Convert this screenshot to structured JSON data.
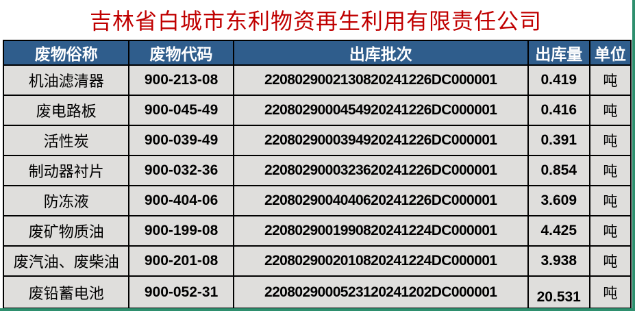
{
  "title": "吉林省白城市东利物资再生利用有限责任公司",
  "colors": {
    "title_text": "#c00000",
    "header_bg": "#2f5d8c",
    "header_text": "#ffffff",
    "row_bg": "#dfdedc",
    "grid_line": "#000000",
    "sheet_edge_green": "#2e8f6e"
  },
  "table": {
    "headers": [
      "废物俗称",
      "废物代码",
      "出库批次",
      "出库量",
      "单位"
    ],
    "rows": [
      {
        "name": "机油滤清器",
        "code": "900-213-08",
        "batch": "2208029002130820241226DC000001",
        "qty": "0.419",
        "unit": "吨"
      },
      {
        "name": "废电路板",
        "code": "900-045-49",
        "batch": "2208029000454920241226DC000001",
        "qty": "0.416",
        "unit": "吨"
      },
      {
        "name": "活性炭",
        "code": "900-039-49",
        "batch": "2208029000394920241226DC000001",
        "qty": "0.391",
        "unit": "吨"
      },
      {
        "name": "制动器衬片",
        "code": "900-032-36",
        "batch": "2208029000323620241226DC000001",
        "qty": "0.854",
        "unit": "吨"
      },
      {
        "name": "防冻液",
        "code": "900-404-06",
        "batch": "2208029004040620241226DC000001",
        "qty": "3.609",
        "unit": "吨"
      },
      {
        "name": "废矿物质油",
        "code": "900-199-08",
        "batch": "2208029001990820241224DC000001",
        "qty": "4.425",
        "unit": "吨"
      },
      {
        "name": "废汽油、废柴油",
        "code": "900-201-08",
        "batch": "2208029002010820241224DC000001",
        "qty": "3.938",
        "unit": "吨"
      },
      {
        "name": "废铅蓄电池",
        "code": "900-052-31",
        "batch": "2208029000523120241202DC000001",
        "qty": "20.531",
        "unit": "吨"
      }
    ]
  }
}
